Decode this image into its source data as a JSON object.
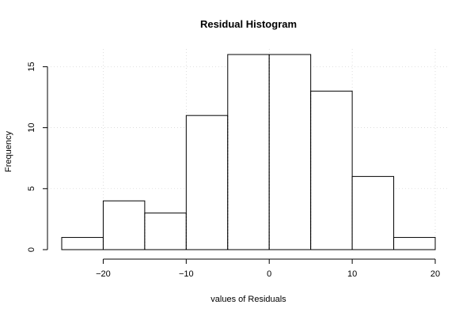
{
  "chart_data": {
    "type": "bar",
    "title": "Residual Histogram",
    "xlabel": "values of Residuals",
    "ylabel": "Frequency",
    "bin_edges": [
      -25,
      -20,
      -15,
      -10,
      -5,
      0,
      5,
      10,
      15,
      20
    ],
    "values": [
      1,
      4,
      3,
      11,
      16,
      16,
      13,
      6,
      1
    ],
    "xlim": [
      -25,
      20
    ],
    "ylim": [
      0,
      16
    ],
    "x_ticks": [
      -20,
      -10,
      0,
      10,
      20
    ],
    "y_ticks": [
      0,
      5,
      10,
      15
    ],
    "grid": true
  }
}
